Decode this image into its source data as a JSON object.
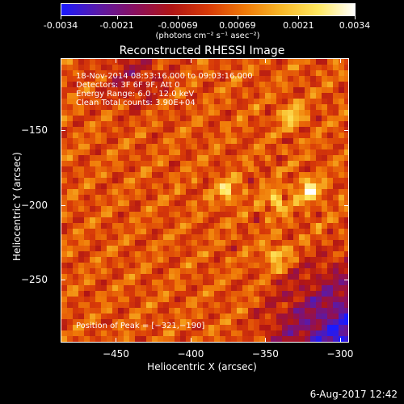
{
  "colorbar": {
    "colors": [
      "#1a1aff",
      "#5a1aa8",
      "#8a1060",
      "#b01515",
      "#d83a08",
      "#f07a08",
      "#f8b828",
      "#ffe860",
      "#ffffff"
    ],
    "ticks": [
      "-0.0034",
      "-0.0021",
      "-0.00069",
      "0.00069",
      "0.0021",
      "0.0034"
    ],
    "tick_values": [
      -0.0034,
      -0.0021,
      -0.00069,
      0.00069,
      0.0021,
      0.0034
    ],
    "range": [
      -0.0034,
      0.0034
    ],
    "units": "(photons cm⁻² s⁻¹ asec⁻²)"
  },
  "chart_data": {
    "type": "heatmap",
    "title": "Reconstructed RHESSI Image",
    "xlabel": "Heliocentric X (arcsec)",
    "ylabel": "Heliocentric Y (arcsec)",
    "xlim": [
      -487,
      -294
    ],
    "ylim": [
      -292,
      -102
    ],
    "xticks": [
      "−450",
      "−400",
      "−350",
      "−300"
    ],
    "xtick_values": [
      -450,
      -400,
      -350,
      -300
    ],
    "yticks": [
      "−150",
      "−200",
      "−250"
    ],
    "ytick_values": [
      -150,
      -200,
      -250
    ],
    "peak": {
      "x": -321,
      "y": -190
    },
    "bright_spots": [
      {
        "x": -321,
        "y": -190
      },
      {
        "x": -343,
        "y": -197
      },
      {
        "x": -376,
        "y": -190
      },
      {
        "x": -333,
        "y": -140
      },
      {
        "x": -343,
        "y": -234
      }
    ],
    "info_lines": [
      "18-Nov-2014 08:53:16.000 to 09:03:16.000",
      "Detectors: 3F 6F 9F, Att 0",
      "Energy Range: 6.0 - 12.0 keV",
      "Clean     Total counts: 3.90E+04"
    ],
    "peak_label": "Position of Peak = [−321,−190]"
  },
  "footer": {
    "date": "6-Aug-2017 12:42"
  }
}
